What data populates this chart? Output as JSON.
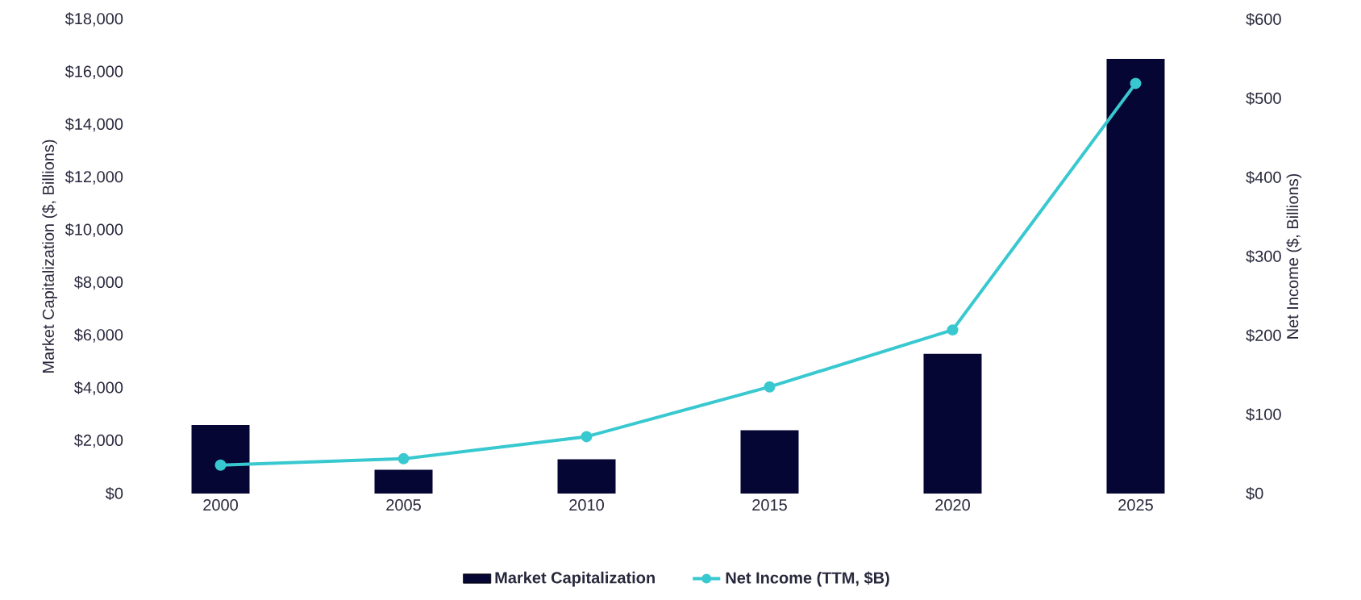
{
  "chart_data": {
    "type": "bar",
    "categories": [
      "2000",
      "2005",
      "2010",
      "2015",
      "2020",
      "2025"
    ],
    "ylabel": "Market Capitalization ($, Billions)",
    "y2label": "Net Income ($, Billions)",
    "series": [
      {
        "name": "Market Capitalization",
        "color": "#060634",
        "values": [
          2600,
          900,
          1300,
          2400,
          5300,
          16500
        ]
      },
      {
        "name": "Net Income (TTM, $B)",
        "type": "line",
        "axis": "y2",
        "color": "#38c8d0",
        "marker": "circle",
        "values": [
          36,
          44,
          72,
          135,
          207,
          519
        ]
      }
    ],
    "ylim": [
      0,
      18000
    ],
    "yticks": [
      {
        "value": 0,
        "label": "$0"
      },
      {
        "value": 2000,
        "label": "$2,000"
      },
      {
        "value": 4000,
        "label": "$4,000"
      },
      {
        "value": 6000,
        "label": "$6,000"
      },
      {
        "value": 8000,
        "label": "$8,000"
      },
      {
        "value": 10000,
        "label": "$10,000"
      },
      {
        "value": 12000,
        "label": "$12,000"
      },
      {
        "value": 14000,
        "label": "$14,000"
      },
      {
        "value": 16000,
        "label": "$16,000"
      },
      {
        "value": 18000,
        "label": "$18,000"
      }
    ],
    "y2lim": [
      0,
      600
    ],
    "y2ticks": [
      {
        "value": 0,
        "label": "$0"
      },
      {
        "value": 100,
        "label": "$100"
      },
      {
        "value": 200,
        "label": "$200"
      },
      {
        "value": 300,
        "label": "$300"
      },
      {
        "value": 400,
        "label": "$400"
      },
      {
        "value": 500,
        "label": "$500"
      },
      {
        "value": 600,
        "label": "$600"
      }
    ],
    "legend": "bottom"
  }
}
